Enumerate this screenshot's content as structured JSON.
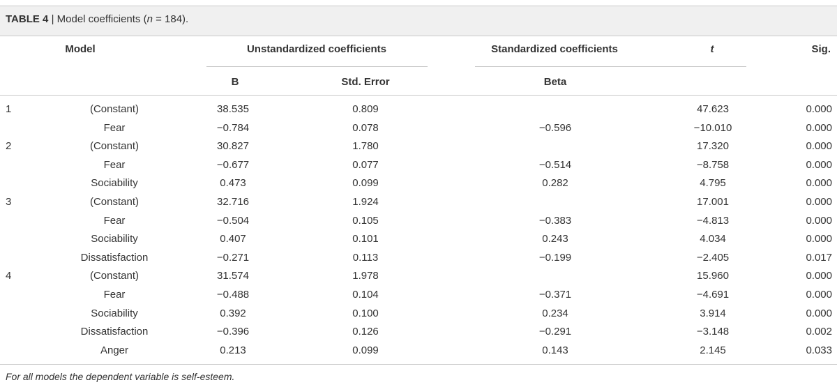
{
  "caption": {
    "label": "TABLE 4",
    "separator": " | ",
    "text_before": "Model coefficients (",
    "n_symbol": "n",
    "text_after": " = 184)."
  },
  "headers": {
    "model": "Model",
    "unstandardized": "Unstandardized coefficients",
    "standardized": "Standardized coefficients",
    "t": "t",
    "sig": "Sig.",
    "b": "B",
    "std_error": "Std. Error",
    "beta": "Beta"
  },
  "rows": [
    {
      "model": "1",
      "predictor": "(Constant)",
      "b": "38.535",
      "se": "0.809",
      "beta": "",
      "t": "47.623",
      "sig": "0.000"
    },
    {
      "model": "",
      "predictor": "Fear",
      "b": "−0.784",
      "se": "0.078",
      "beta": "−0.596",
      "t": "−10.010",
      "sig": "0.000"
    },
    {
      "model": "2",
      "predictor": "(Constant)",
      "b": "30.827",
      "se": "1.780",
      "beta": "",
      "t": "17.320",
      "sig": "0.000"
    },
    {
      "model": "",
      "predictor": "Fear",
      "b": "−0.677",
      "se": "0.077",
      "beta": "−0.514",
      "t": "−8.758",
      "sig": "0.000"
    },
    {
      "model": "",
      "predictor": "Sociability",
      "b": "0.473",
      "se": "0.099",
      "beta": "0.282",
      "t": "4.795",
      "sig": "0.000"
    },
    {
      "model": "3",
      "predictor": "(Constant)",
      "b": "32.716",
      "se": "1.924",
      "beta": "",
      "t": "17.001",
      "sig": "0.000"
    },
    {
      "model": "",
      "predictor": "Fear",
      "b": "−0.504",
      "se": "0.105",
      "beta": "−0.383",
      "t": "−4.813",
      "sig": "0.000"
    },
    {
      "model": "",
      "predictor": "Sociability",
      "b": "0.407",
      "se": "0.101",
      "beta": "0.243",
      "t": "4.034",
      "sig": "0.000"
    },
    {
      "model": "",
      "predictor": "Dissatisfaction",
      "b": "−0.271",
      "se": "0.113",
      "beta": "−0.199",
      "t": "−2.405",
      "sig": "0.017"
    },
    {
      "model": "4",
      "predictor": "(Constant)",
      "b": "31.574",
      "se": "1.978",
      "beta": "",
      "t": "15.960",
      "sig": "0.000"
    },
    {
      "model": "",
      "predictor": "Fear",
      "b": "−0.488",
      "se": "0.104",
      "beta": "−0.371",
      "t": "−4.691",
      "sig": "0.000"
    },
    {
      "model": "",
      "predictor": "Sociability",
      "b": "0.392",
      "se": "0.100",
      "beta": "0.234",
      "t": "3.914",
      "sig": "0.000"
    },
    {
      "model": "",
      "predictor": "Dissatisfaction",
      "b": "−0.396",
      "se": "0.126",
      "beta": "−0.291",
      "t": "−3.148",
      "sig": "0.002"
    },
    {
      "model": "",
      "predictor": "Anger",
      "b": "0.213",
      "se": "0.099",
      "beta": "0.143",
      "t": "2.145",
      "sig": "0.033"
    }
  ],
  "note": "For all models the dependent variable is self-esteem."
}
